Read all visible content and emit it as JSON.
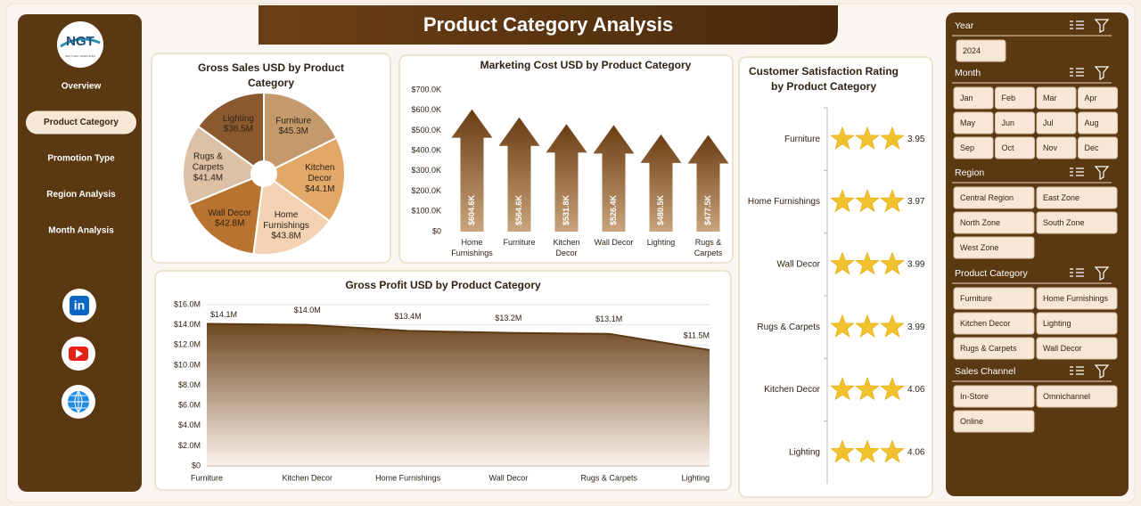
{
  "header": {
    "title": "Product Category Analysis"
  },
  "logo": {
    "text": "NGT",
    "tagline": "NEXT GEN TEMPLATES"
  },
  "nav": {
    "items": [
      "Overview",
      "Product Category",
      "Promotion Type",
      "Region Analysis",
      "Month Analysis"
    ],
    "active": 1
  },
  "social": {
    "linkedin": "in"
  },
  "chart_data": [
    {
      "type": "pie",
      "title": "Gross Sales USD by Product Category",
      "categories": [
        "Furniture",
        "Kitchen Decor",
        "Home Furnishings",
        "Wall Decor",
        "Rugs & Carpets",
        "Lighting"
      ],
      "values": [
        45.3,
        44.1,
        43.8,
        42.8,
        41.4,
        38.5
      ],
      "value_labels": [
        "$45.3M",
        "$44.1M",
        "$43.8M",
        "$42.8M",
        "$41.4M",
        "$38.5M"
      ],
      "colors": [
        "#c49a6c",
        "#e2a868",
        "#f3d3b3",
        "#b8732f",
        "#dcc1a6",
        "#8a5a2e"
      ]
    },
    {
      "type": "bar",
      "title": "Marketing Cost USD by Product Category",
      "categories": [
        "Home Furnishings",
        "Furniture",
        "Kitchen Decor",
        "Wall Decor",
        "Lighting",
        "Rugs & Carpets"
      ],
      "values": [
        604.6,
        564.6,
        531.8,
        526.4,
        480.5,
        477.5
      ],
      "value_labels": [
        "$604.6K",
        "$564.6K",
        "$531.8K",
        "$526.4K",
        "$480.5K",
        "$477.5K"
      ],
      "color": "#7a4718",
      "ylim": [
        0,
        700
      ],
      "yticks": [
        {
          "value": 0,
          "label": "$0"
        },
        {
          "value": 100,
          "label": "$100.0K"
        },
        {
          "value": 200,
          "label": "$200.0K"
        },
        {
          "value": 300,
          "label": "$300.0K"
        },
        {
          "value": 400,
          "label": "$400.0K"
        },
        {
          "value": 500,
          "label": "$500.0K"
        },
        {
          "value": 600,
          "label": "$600.0K"
        },
        {
          "value": 700,
          "label": "$700.0K"
        }
      ],
      "grid": false
    },
    {
      "type": "area",
      "title": "Gross Profit USD by Product Category",
      "categories": [
        "Furniture",
        "Kitchen Decor",
        "Home Furnishings",
        "Wall Decor",
        "Rugs & Carpets",
        "Lighting"
      ],
      "values": [
        14.1,
        14.0,
        13.4,
        13.2,
        13.1,
        11.5
      ],
      "value_labels": [
        "$14.1M",
        "$14.0M",
        "$13.4M",
        "$13.2M",
        "$13.1M",
        "$11.5M"
      ],
      "color": "#5c3a14",
      "ylim": [
        0,
        16
      ],
      "yticks": [
        {
          "value": 0,
          "label": "$0"
        },
        {
          "value": 2,
          "label": "$2.0M"
        },
        {
          "value": 4,
          "label": "$4.0M"
        },
        {
          "value": 6,
          "label": "$6.0M"
        },
        {
          "value": 8,
          "label": "$8.0M"
        },
        {
          "value": 10,
          "label": "$10.0M"
        },
        {
          "value": 12,
          "label": "$12.0M"
        },
        {
          "value": 14,
          "label": "$14.0M"
        },
        {
          "value": 16,
          "label": "$16.0M"
        }
      ],
      "grid": true
    },
    {
      "type": "pictograph",
      "title": "Customer Satisfaction Rating by Product Category",
      "categories": [
        "Furniture",
        "Home Furnishings",
        "Wall Decor",
        "Rugs & Carpets",
        "Kitchen Decor",
        "Lighting"
      ],
      "values": [
        3.95,
        3.97,
        3.99,
        3.99,
        4.06,
        4.06
      ],
      "color": "#f2c12e"
    }
  ],
  "slicers": [
    {
      "title": "Year",
      "items": [
        "2024"
      ]
    },
    {
      "title": "Month",
      "items": [
        "Jan",
        "Feb",
        "Mar",
        "Apr",
        "May",
        "Jun",
        "Jul",
        "Aug",
        "Sep",
        "Oct",
        "Nov",
        "Dec"
      ]
    },
    {
      "title": "Region",
      "items": [
        "Central Region",
        "East Zone",
        "North Zone",
        "South Zone",
        "West Zone"
      ]
    },
    {
      "title": "Product Category",
      "items": [
        "Furniture",
        "Home Furnishings",
        "Kitchen Decor",
        "Lighting",
        "Rugs & Carpets",
        "Wall Decor"
      ]
    },
    {
      "title": "Sales Channel",
      "items": [
        "In-Store",
        "Omnichannel",
        "Online"
      ]
    }
  ]
}
